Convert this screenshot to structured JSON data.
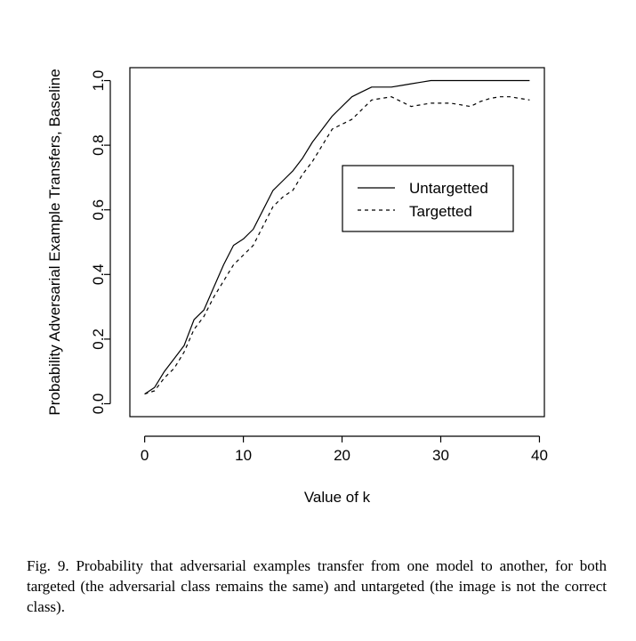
{
  "chart_data": {
    "type": "line",
    "title": "",
    "xlabel": "Value of k",
    "ylabel": "Probability Adversarial Example Transfers, Baseline",
    "xlim": [
      -1.5,
      40.5
    ],
    "ylim": [
      -0.04,
      1.04
    ],
    "xticks": [
      0,
      10,
      20,
      30,
      40
    ],
    "yticks": [
      0.0,
      0.2,
      0.4,
      0.6,
      0.8,
      1.0
    ],
    "xtick_labels": [
      "0",
      "10",
      "20",
      "30",
      "40"
    ],
    "ytick_labels": [
      "0.0",
      "0.2",
      "0.4",
      "0.6",
      "0.8",
      "1.0"
    ],
    "legend_position": "right, upper-middle",
    "grid": false,
    "series": [
      {
        "name": "Untargetted",
        "style": "solid",
        "x": [
          0,
          1,
          2,
          3,
          4,
          5,
          6,
          7,
          8,
          9,
          10,
          11,
          12,
          13,
          14,
          15,
          16,
          17,
          18,
          19,
          20,
          21,
          22,
          23,
          24,
          25,
          26,
          27,
          28,
          29,
          30,
          31,
          32,
          33,
          34,
          35,
          36,
          37,
          38,
          39
        ],
        "y": [
          0.03,
          0.05,
          0.1,
          0.14,
          0.18,
          0.26,
          0.29,
          0.36,
          0.43,
          0.49,
          0.51,
          0.54,
          0.6,
          0.66,
          0.69,
          0.72,
          0.76,
          0.81,
          0.85,
          0.89,
          0.92,
          0.95,
          0.965,
          0.98,
          0.98,
          0.98,
          0.985,
          0.99,
          0.995,
          1.0,
          1.0,
          1.0,
          1.0,
          1.0,
          1.0,
          1.0,
          1.0,
          1.0,
          1.0,
          1.0
        ]
      },
      {
        "name": "Targetted",
        "style": "dashed",
        "x": [
          0,
          1,
          2,
          3,
          4,
          5,
          6,
          7,
          8,
          9,
          10,
          11,
          12,
          13,
          14,
          15,
          16,
          17,
          18,
          19,
          20,
          21,
          22,
          23,
          24,
          25,
          26,
          27,
          28,
          29,
          30,
          31,
          32,
          33,
          34,
          35,
          36,
          37,
          38,
          39
        ],
        "y": [
          0.03,
          0.04,
          0.08,
          0.11,
          0.16,
          0.23,
          0.27,
          0.33,
          0.38,
          0.43,
          0.46,
          0.49,
          0.55,
          0.61,
          0.64,
          0.66,
          0.71,
          0.75,
          0.8,
          0.85,
          0.865,
          0.88,
          0.91,
          0.94,
          0.945,
          0.95,
          0.935,
          0.92,
          0.925,
          0.93,
          0.93,
          0.93,
          0.925,
          0.92,
          0.935,
          0.945,
          0.95,
          0.95,
          0.945,
          0.94
        ]
      }
    ]
  },
  "caption": {
    "text": "Fig. 9.  Probability that adversarial examples transfer from one model to another, for both targeted (the adversarial class remains the same) and untargeted (the image is not the correct class)."
  }
}
